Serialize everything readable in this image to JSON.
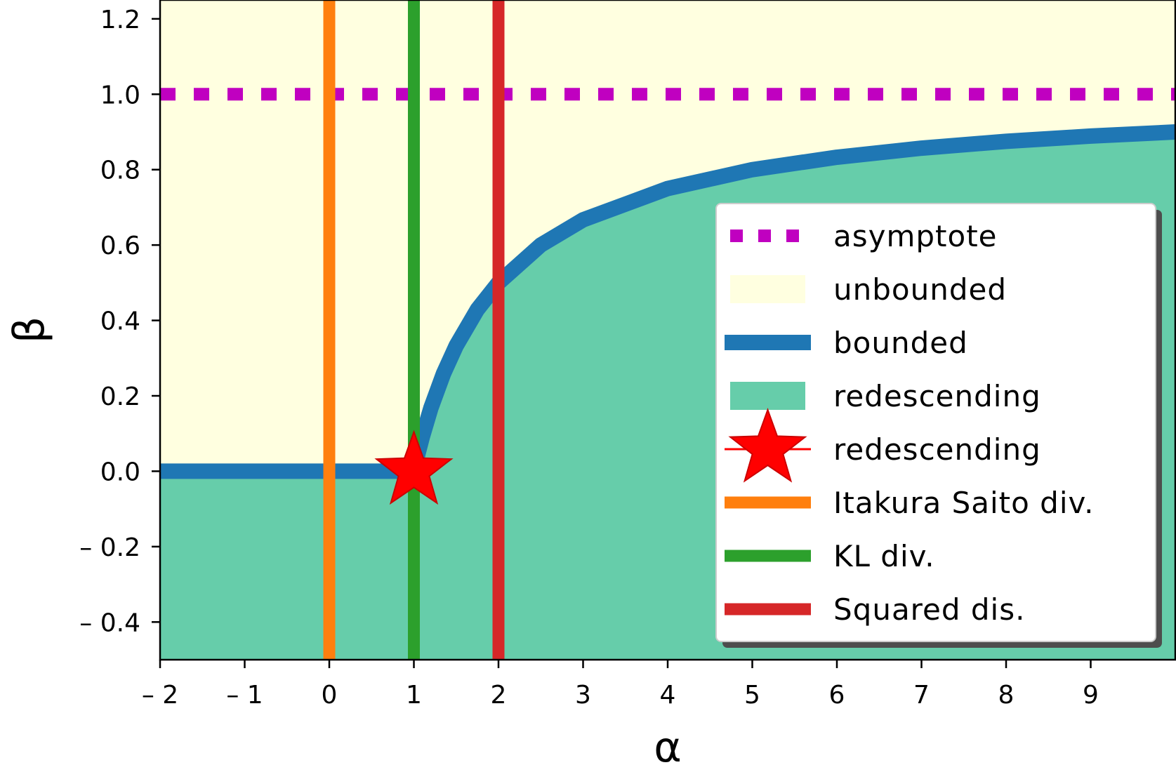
{
  "chart_data": {
    "type": "area",
    "xlabel": "α",
    "ylabel": "β",
    "xlim": [
      -2,
      10
    ],
    "ylim": [
      -0.5,
      1.25
    ],
    "x_ticks": [
      {
        "value": -2,
        "label": "– 2"
      },
      {
        "value": -1,
        "label": "– 1"
      },
      {
        "value": 0,
        "label": "0"
      },
      {
        "value": 1,
        "label": "1"
      },
      {
        "value": 2,
        "label": "2"
      },
      {
        "value": 3,
        "label": "3"
      },
      {
        "value": 4,
        "label": "4"
      },
      {
        "value": 5,
        "label": "5"
      },
      {
        "value": 6,
        "label": "6"
      },
      {
        "value": 7,
        "label": "7"
      },
      {
        "value": 8,
        "label": "8"
      },
      {
        "value": 9,
        "label": "9"
      }
    ],
    "y_ticks": [
      {
        "value": -0.4,
        "label": "– 0.4"
      },
      {
        "value": -0.2,
        "label": "– 0.2"
      },
      {
        "value": 0.0,
        "label": "0.0"
      },
      {
        "value": 0.2,
        "label": "0.2"
      },
      {
        "value": 0.4,
        "label": "0.4"
      },
      {
        "value": 0.6,
        "label": "0.6"
      },
      {
        "value": 0.8,
        "label": "0.8"
      },
      {
        "value": 1.0,
        "label": "1.0"
      },
      {
        "value": 1.2,
        "label": "1.2"
      }
    ],
    "grid": false,
    "legend_position": "lower-right",
    "series": [
      {
        "name": "asymptote",
        "kind": "hline",
        "y": 1.0,
        "style": "dotted",
        "color": "#c000c0"
      },
      {
        "name": "unbounded",
        "kind": "region",
        "region": "above boundary",
        "color": "#ffffe0"
      },
      {
        "name": "bounded",
        "kind": "boundary",
        "formula": "β = 0 for α ≤ 1, β = (α − 1)/α for α > 1",
        "x": [
          -2,
          1,
          1.05,
          1.1,
          1.2,
          1.35,
          1.5,
          1.75,
          2,
          2.5,
          3,
          4,
          5,
          6,
          7,
          8,
          9,
          10
        ],
        "y": [
          0,
          0,
          0.048,
          0.091,
          0.167,
          0.259,
          0.333,
          0.429,
          0.5,
          0.6,
          0.667,
          0.75,
          0.8,
          0.833,
          0.857,
          0.875,
          0.889,
          0.9
        ],
        "color": "#1f77b4"
      },
      {
        "name": "redescending",
        "kind": "region",
        "region": "below boundary",
        "color": "#66cdaa"
      },
      {
        "name": "redescending",
        "kind": "point",
        "x": 1,
        "y": 0,
        "marker": "star",
        "color": "#ff0000"
      },
      {
        "name": "Itakura Saito div.",
        "kind": "vline",
        "x": 0,
        "color": "#ff7f0e"
      },
      {
        "name": "KL div.",
        "kind": "vline",
        "x": 1,
        "color": "#2ca02c"
      },
      {
        "name": "Squared dis.",
        "kind": "vline",
        "x": 2,
        "color": "#d62728"
      }
    ]
  }
}
